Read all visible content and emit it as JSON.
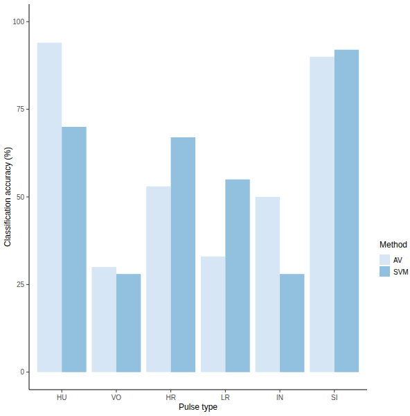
{
  "chart_data": {
    "type": "bar",
    "x_label": "Pulse type",
    "y_label": "Classification accuracy (%)",
    "legend_title": "Method",
    "categories": [
      "HU",
      "VO",
      "HR",
      "LR",
      "IN",
      "SI"
    ],
    "series": [
      {
        "name": "AV",
        "color": "#d6e6f4",
        "values": [
          94,
          30,
          53,
          33,
          50,
          90
        ]
      },
      {
        "name": "SVM",
        "color": "#92c0df",
        "values": [
          70,
          28,
          67,
          55,
          28,
          92
        ]
      }
    ],
    "ylim": [
      -5,
      105
    ],
    "yticks": [
      0,
      25,
      50,
      75,
      100
    ],
    "grid": false,
    "legend": "right"
  }
}
